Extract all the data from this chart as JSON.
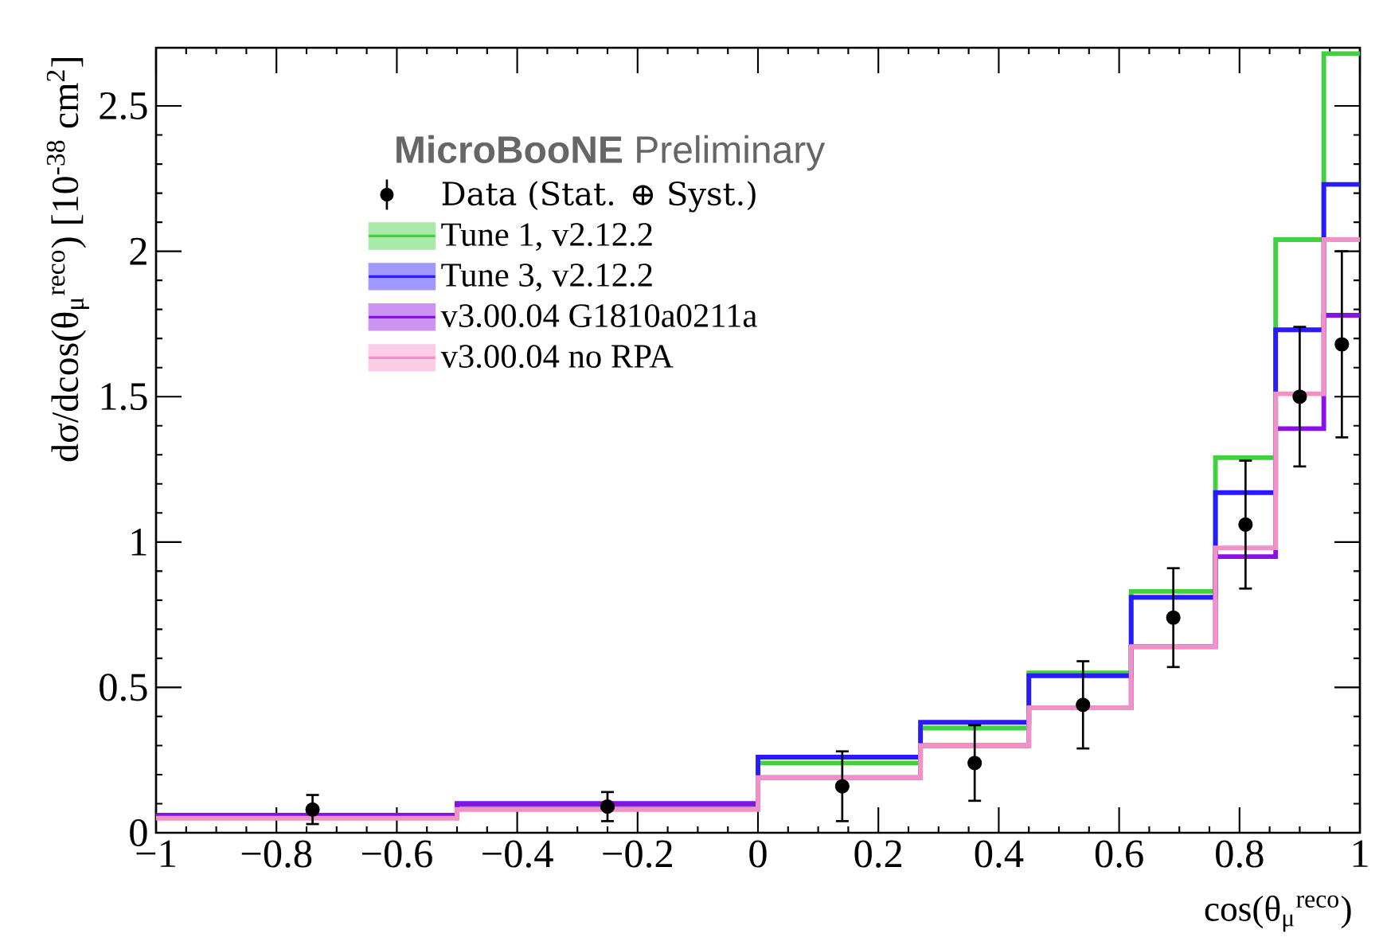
{
  "chart_data": {
    "type": "histogram",
    "legend_title": "**MicroBooNE** Preliminary",
    "xlabel": "cos(θ$_{μ}$$^{reco}$)",
    "ylabel": "dσ/dcos(θ$_{μ}$$^{reco}$) [10$^{-38}$ cm$^{2}$]",
    "bins": [
      -1,
      -0.5,
      0,
      0.27,
      0.45,
      0.62,
      0.76,
      0.86,
      0.94,
      1
    ],
    "xlim": [
      -1,
      1
    ],
    "ylim": [
      0,
      2.7
    ],
    "xticks": [
      {
        "value": -1,
        "label": "−1"
      },
      {
        "value": -0.8,
        "label": "−0.8"
      },
      {
        "value": -0.6,
        "label": "−0.6"
      },
      {
        "value": -0.4,
        "label": "−0.4"
      },
      {
        "value": -0.2,
        "label": "−0.2"
      },
      0,
      0.2,
      0.4,
      0.6,
      0.8,
      1
    ],
    "yticks": [
      0,
      0.5,
      1,
      1.5,
      2,
      2.5
    ],
    "legend": "top left",
    "series": [
      {
        "name": "Data (Stat. ⊕ Syst.)",
        "type": "scatter",
        "marker": "circle",
        "color": "#000000",
        "x": [
          -0.74,
          -0.25,
          0.14,
          0.36,
          0.54,
          0.69,
          0.81,
          0.9,
          0.97
        ],
        "values": [
          0.08,
          0.09,
          0.16,
          0.24,
          0.44,
          0.74,
          1.06,
          1.5,
          1.68
        ],
        "errors": [
          0.05,
          0.05,
          0.12,
          0.13,
          0.15,
          0.17,
          0.22,
          0.24,
          0.32
        ]
      },
      {
        "name": "Tune 1, v2.12.2",
        "color": "#40d040",
        "values": [
          0.06,
          0.09,
          0.24,
          0.36,
          0.55,
          0.83,
          1.29,
          2.04,
          2.68
        ]
      },
      {
        "name": "Tune 3, v2.12.2",
        "color": "#2a1aff",
        "values": [
          0.06,
          0.1,
          0.26,
          0.38,
          0.54,
          0.81,
          1.17,
          1.73,
          2.23
        ]
      },
      {
        "name": "v3.00.04 G1810a0211a",
        "color": "#8a10e6",
        "values": [
          0.06,
          0.1,
          0.19,
          0.3,
          0.43,
          0.64,
          0.95,
          1.39,
          1.78
        ]
      },
      {
        "name": "v3.00.04 no RPA",
        "color": "#f490c8",
        "values": [
          0.05,
          0.08,
          0.19,
          0.3,
          0.43,
          0.64,
          0.98,
          1.51,
          2.04
        ]
      }
    ]
  }
}
